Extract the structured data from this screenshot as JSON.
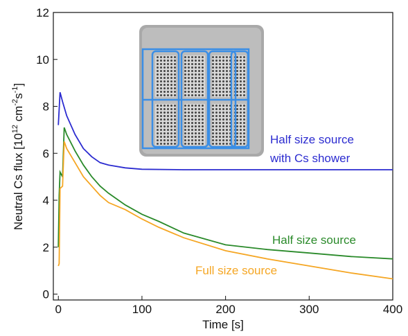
{
  "chart_data": {
    "type": "line",
    "x_label": "Time [s]",
    "y_label": [
      "Neutral Cs flux [10",
      "12",
      " cm",
      "-2",
      "s",
      "-1",
      "]"
    ],
    "xlim": [
      -6,
      400
    ],
    "xticks": [
      0,
      100,
      200,
      300,
      400
    ],
    "ylim": [
      -0.25,
      12
    ],
    "yticks": [
      0,
      2,
      4,
      6,
      8,
      10,
      12
    ],
    "annotations": [
      "Half size source",
      "with Cs shower",
      "Half size source",
      "Full size source"
    ],
    "series": [
      {
        "color": "#2b2bd0",
        "x": [
          0,
          2,
          5,
          10,
          20,
          30,
          40,
          50,
          60,
          80,
          100,
          150,
          200,
          300,
          400
        ],
        "values": [
          7.2,
          8.6,
          8.2,
          7.6,
          6.8,
          6.2,
          5.85,
          5.6,
          5.5,
          5.38,
          5.32,
          5.3,
          5.3,
          5.3,
          5.3
        ]
      },
      {
        "color": "#2a8a2a",
        "x": [
          0,
          1,
          2,
          5,
          7,
          10,
          20,
          30,
          40,
          50,
          60,
          80,
          100,
          120,
          150,
          200,
          250,
          300,
          350,
          400
        ],
        "values": [
          2.0,
          4.2,
          5.2,
          5.0,
          7.1,
          6.8,
          6.1,
          5.5,
          5.0,
          4.6,
          4.3,
          3.8,
          3.4,
          3.1,
          2.6,
          2.1,
          1.9,
          1.75,
          1.6,
          1.5
        ]
      },
      {
        "color": "#f5a623",
        "x": [
          0,
          1,
          2,
          5,
          7,
          10,
          20,
          30,
          40,
          50,
          60,
          80,
          100,
          120,
          150,
          200,
          250,
          300,
          350,
          400
        ],
        "values": [
          1.2,
          1.3,
          4.5,
          4.6,
          6.5,
          6.2,
          5.6,
          5.0,
          4.6,
          4.2,
          3.9,
          3.6,
          3.2,
          2.85,
          2.4,
          1.85,
          1.5,
          1.2,
          0.9,
          0.65
        ]
      }
    ]
  }
}
